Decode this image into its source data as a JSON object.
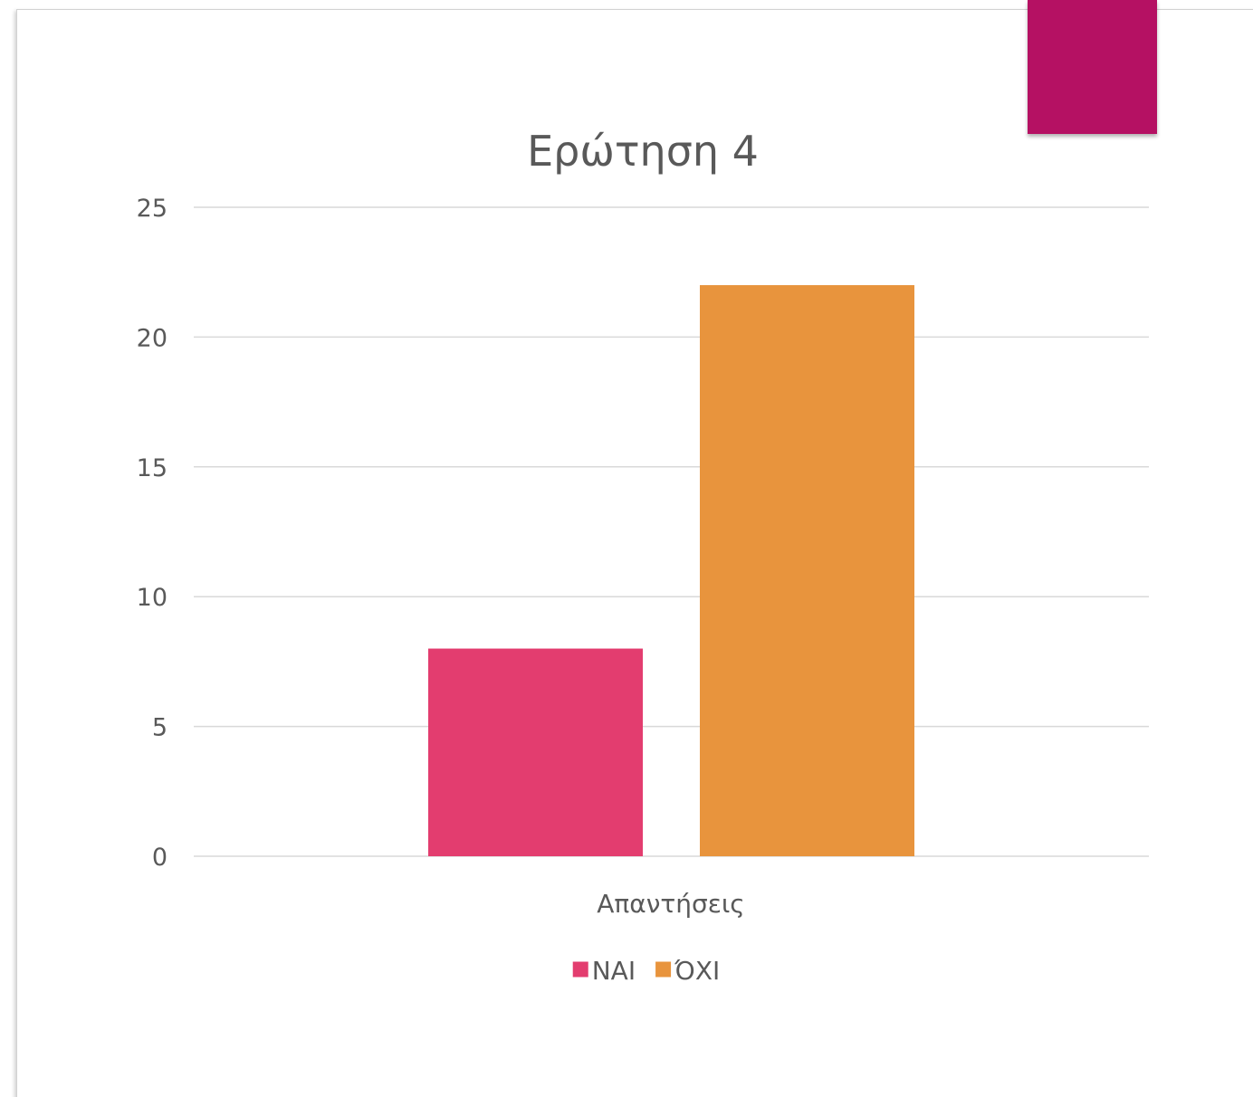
{
  "colors": {
    "accent_tab": "#b51163",
    "grid": "#d9d9d9",
    "text": "#595959"
  },
  "chart_data": {
    "type": "bar",
    "title": "Ερώτηση 4",
    "xlabel": "Απαντήσεις",
    "ylabel": "",
    "categories": [
      "Απαντήσεις"
    ],
    "series": [
      {
        "name": "ΝΑΙ",
        "values": [
          8
        ],
        "color": "#e33d6f"
      },
      {
        "name": "ΌΧΙ",
        "values": [
          22
        ],
        "color": "#e8943d"
      }
    ],
    "ylim": [
      0,
      25
    ],
    "yticks": [
      "0",
      "5",
      "10",
      "15",
      "20",
      "25"
    ],
    "grid": true,
    "legend": "bottom"
  }
}
